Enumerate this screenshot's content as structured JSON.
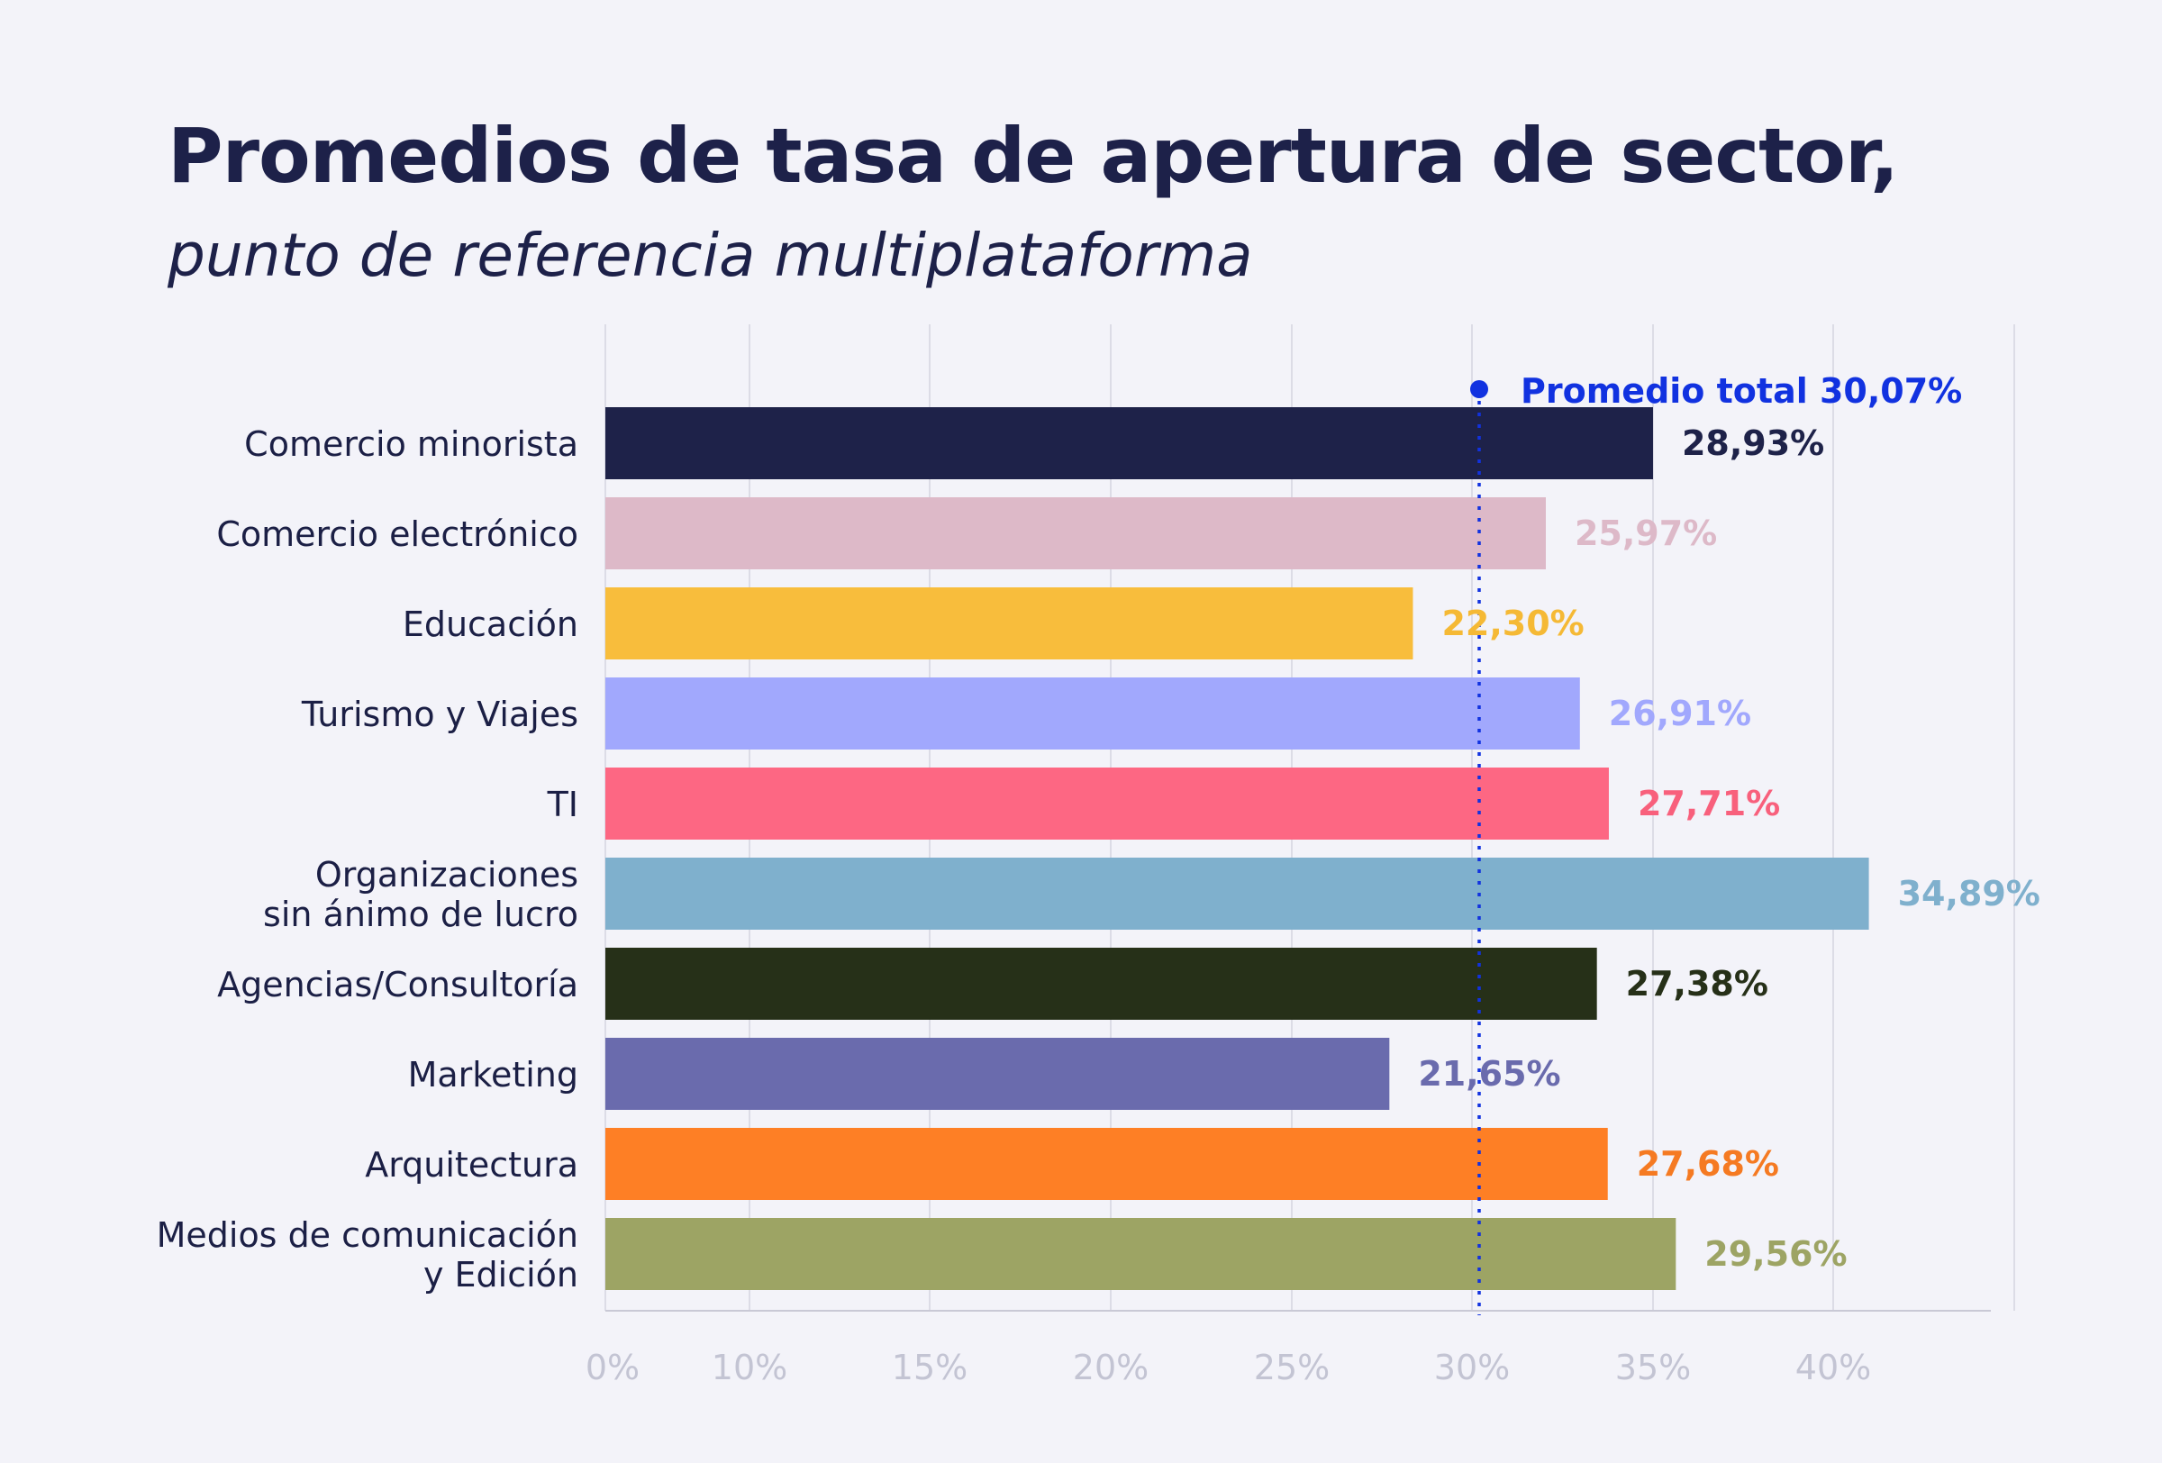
{
  "title": "Promedios de tasa de apertura de sector,",
  "subtitle": "punto de referencia multiplataforma",
  "chart_data": {
    "type": "bar",
    "orientation": "horizontal",
    "categories": [
      "Comercio minorista",
      "Comercio electrónico",
      "Educación",
      "Turismo y Viajes",
      "TI",
      "Organizaciones\nsin ánimo de lucro",
      "Agencias/Consultoría",
      "Marketing",
      "Arquitectura",
      "Medios de comunicación\ny Edición"
    ],
    "values": [
      28.93,
      25.97,
      22.3,
      26.91,
      27.71,
      34.89,
      27.38,
      21.65,
      27.68,
      29.56
    ],
    "value_labels": [
      "28,93%",
      "25,97%",
      "22,30%",
      "26,91%",
      "27,71%",
      "34,89%",
      "27,38%",
      "21,65%",
      "27,68%",
      "29,56%"
    ],
    "colors": [
      "#1e2249",
      "#ddb9c8",
      "#f8bd3c",
      "#a1a8fd",
      "#fd6783",
      "#7fb0cd",
      "#263018",
      "#6a6bad",
      "#fe7f25",
      "#9da464"
    ],
    "label_colors": [
      "#1e2249",
      "#ddb9c8",
      "#f5b935",
      "#a1a8fd",
      "#f8607c",
      "#7fb0cd",
      "#263018",
      "#6a6bad",
      "#f57a22",
      "#9da464"
    ],
    "x_ticks": [
      "0%",
      "10%",
      "15%",
      "20%",
      "25%",
      "30%",
      "35%",
      "40%"
    ],
    "reference_line": {
      "label": "Promedio total 30,07%",
      "color": "#1132e0"
    },
    "grid": true,
    "legend": "none"
  }
}
